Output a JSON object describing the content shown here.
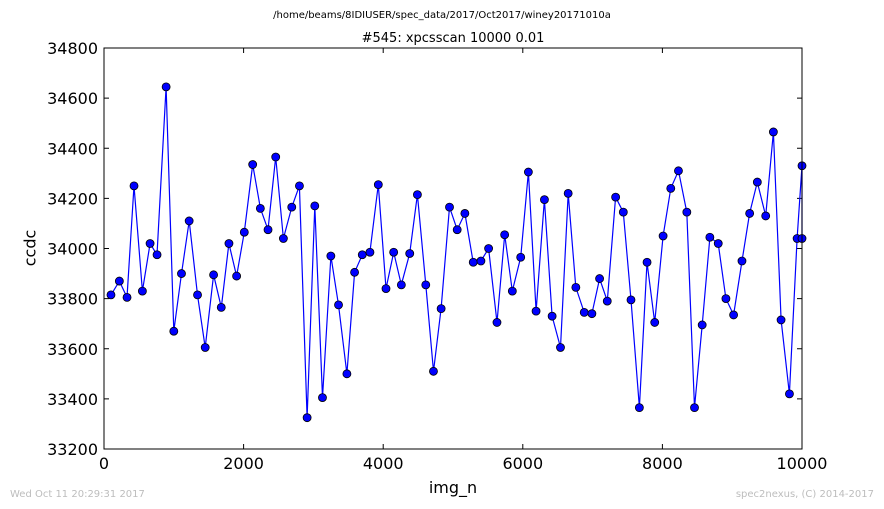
{
  "suptitle": "/home/beams/8IDIUSER/spec_data/2017/Oct2017/winey20171010a",
  "footer": {
    "timestamp": "Wed Oct 11 20:29:31 2017",
    "credit": "spec2nexus, (C) 2014-2017"
  },
  "colors": {
    "series": "#0000ff",
    "marker_fill": "#0000ff",
    "marker_edge": "#000000"
  },
  "chart_data": {
    "type": "line",
    "title": "#545: xpcsscan 10000 0.01",
    "xlabel": "img_n",
    "ylabel": "ccdc",
    "xlim": [
      0,
      10000
    ],
    "ylim": [
      33200,
      34800
    ],
    "xticks": [
      0,
      2000,
      4000,
      6000,
      8000,
      10000
    ],
    "yticks": [
      33200,
      33400,
      33600,
      33800,
      34000,
      34200,
      34400,
      34600,
      34800
    ],
    "grid": false,
    "legend": "none",
    "markers": "circle",
    "x": [
      100,
      220,
      330,
      430,
      550,
      660,
      760,
      890,
      1000,
      1110,
      1220,
      1340,
      1450,
      1570,
      1680,
      1790,
      1900,
      2010,
      2130,
      2240,
      2350,
      2460,
      2570,
      2690,
      2800,
      2910,
      3020,
      3130,
      3250,
      3360,
      3480,
      3590,
      3700,
      3810,
      3930,
      4040,
      4150,
      4260,
      4380,
      4490,
      4610,
      4720,
      4830,
      4950,
      5060,
      5170,
      5290,
      5400,
      5510,
      5630,
      5740,
      5850,
      5970,
      6080,
      6190,
      6310,
      6420,
      6540,
      6650,
      6760,
      6880,
      6990,
      7100,
      7210,
      7330,
      7440,
      7550,
      7670,
      7780,
      7890,
      8010,
      8120,
      8230,
      8350,
      8460,
      8570,
      8680,
      8800,
      8910,
      9020,
      9140,
      9250,
      9360,
      9480,
      9590,
      9700,
      9820,
      9930,
      10000,
      10000
    ],
    "y": [
      33815,
      33870,
      33805,
      34250,
      33830,
      34020,
      33975,
      34645,
      33670,
      33900,
      34110,
      33815,
      33605,
      33895,
      33765,
      34020,
      33890,
      34065,
      34335,
      34160,
      34075,
      34365,
      34040,
      34165,
      34250,
      33325,
      34170,
      33405,
      33970,
      33775,
      33500,
      33905,
      33975,
      33985,
      34255,
      33840,
      33985,
      33855,
      33980,
      34215,
      33855,
      33510,
      33760,
      34165,
      34075,
      34140,
      33945,
      33950,
      34000,
      33705,
      34055,
      33830,
      33965,
      34305,
      33750,
      34195,
      33730,
      33605,
      34220,
      33845,
      33745,
      33740,
      33880,
      33790,
      34205,
      34145,
      33795,
      33365,
      33945,
      33705,
      34050,
      34240,
      34310,
      34145,
      33365,
      33695,
      34045,
      34020,
      33800,
      33735,
      33950,
      34140,
      34265,
      34130,
      34465,
      33715,
      33420,
      34040,
      34330,
      34040
    ]
  }
}
